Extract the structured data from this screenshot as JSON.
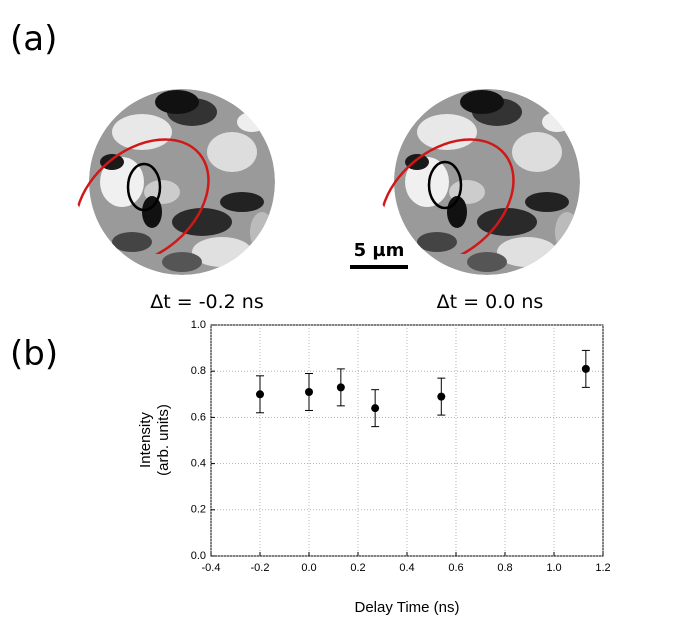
{
  "panel_a": {
    "label": "(a)",
    "captions": [
      "Δt = -0.2 ns",
      "Δt = 0.0 ns"
    ],
    "scale_bar": "5 µm"
  },
  "panel_b": {
    "label": "(b)"
  },
  "chart_data": {
    "type": "scatter",
    "xlabel": "Delay Time (ns)",
    "ylabel": [
      "Intensity",
      "(arb. units)"
    ],
    "xlim": [
      -0.4,
      1.2
    ],
    "ylim": [
      0,
      1
    ],
    "xticks": [
      -0.4,
      -0.2,
      {
        "value": 0,
        "label": "0.0"
      },
      0.2,
      0.4,
      0.6,
      0.8,
      {
        "value": 1,
        "label": "1.0"
      },
      1.2
    ],
    "yticks": [
      {
        "value": 0,
        "label": "0.0"
      },
      0.2,
      0.4,
      0.6,
      0.8,
      {
        "value": 1,
        "label": "1.0"
      }
    ],
    "grid": true,
    "series": [
      {
        "color": "#000000",
        "x": [
          -0.2,
          0.0,
          0.13,
          0.27,
          0.54,
          1.13
        ],
        "values": [
          0.7,
          0.71,
          0.73,
          0.64,
          0.69,
          0.81
        ],
        "errors": [
          0.08,
          0.08,
          0.08,
          0.08,
          0.08,
          0.08
        ]
      }
    ]
  }
}
